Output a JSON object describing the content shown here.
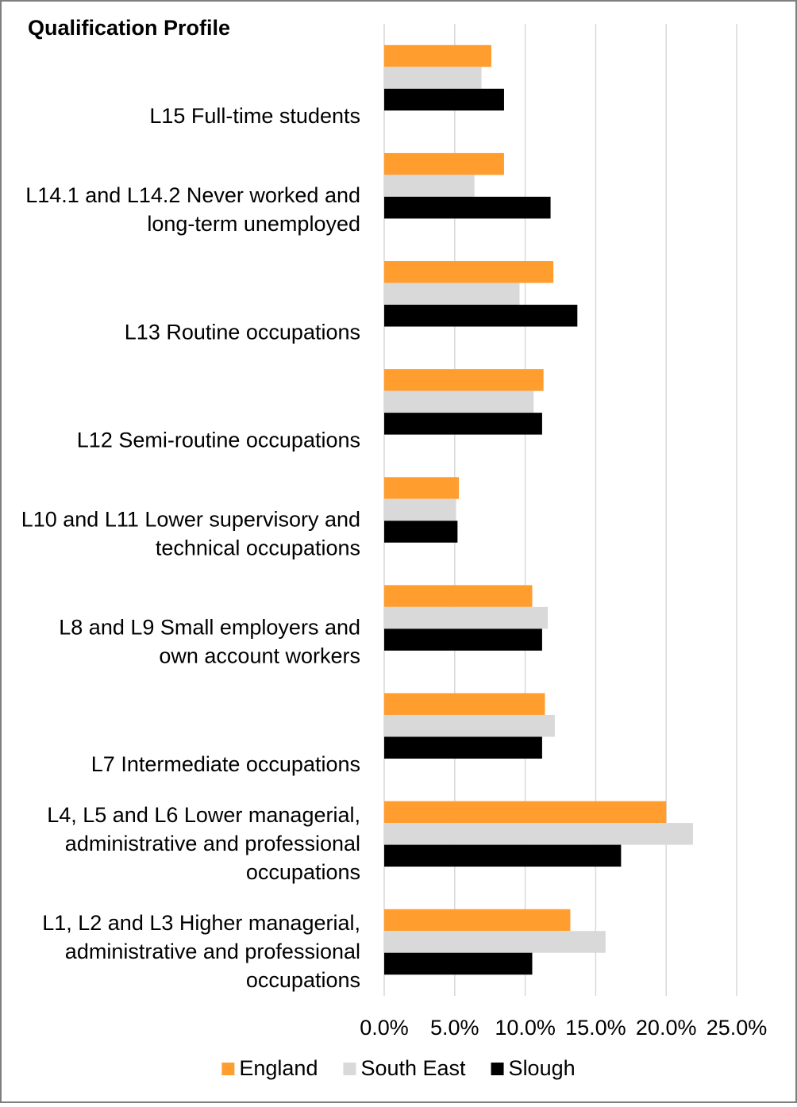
{
  "chart_data": {
    "type": "bar",
    "orientation": "horizontal",
    "title": "Qualification Profile",
    "categories": [
      "L15 Full-time students",
      "L14.1 and L14.2 Never worked and long-term unemployed",
      "L13 Routine occupations",
      "L12 Semi-routine occupations",
      "L10 and L11 Lower supervisory and technical occupations",
      "L8 and L9 Small employers and own account workers",
      "L7 Intermediate occupations",
      "L4, L5 and L6 Lower managerial, administrative and professional occupations",
      "L1, L2 and L3 Higher managerial, administrative and professional occupations"
    ],
    "series": [
      {
        "name": "England",
        "color": "#ff9e2f",
        "values": [
          7.6,
          8.5,
          12.0,
          11.3,
          5.3,
          10.5,
          11.4,
          20.0,
          13.2
        ]
      },
      {
        "name": "South East",
        "color": "#d9d9d9",
        "values": [
          6.9,
          6.4,
          9.6,
          10.6,
          5.1,
          11.6,
          12.1,
          21.9,
          15.7
        ]
      },
      {
        "name": "Slough",
        "color": "#000000",
        "values": [
          8.5,
          11.8,
          13.7,
          11.2,
          5.2,
          11.2,
          11.2,
          16.8,
          10.5
        ]
      }
    ],
    "xlim": [
      0,
      25
    ],
    "xticks": [
      {
        "value": 0,
        "label": "0.0%"
      },
      {
        "value": 5,
        "label": "5.0%"
      },
      {
        "value": 10,
        "label": "10.0%"
      },
      {
        "value": 15,
        "label": "15.0%"
      },
      {
        "value": 20,
        "label": "20.0%"
      },
      {
        "value": 25,
        "label": "25.0%"
      }
    ],
    "grid": true,
    "legend": "bottom"
  }
}
